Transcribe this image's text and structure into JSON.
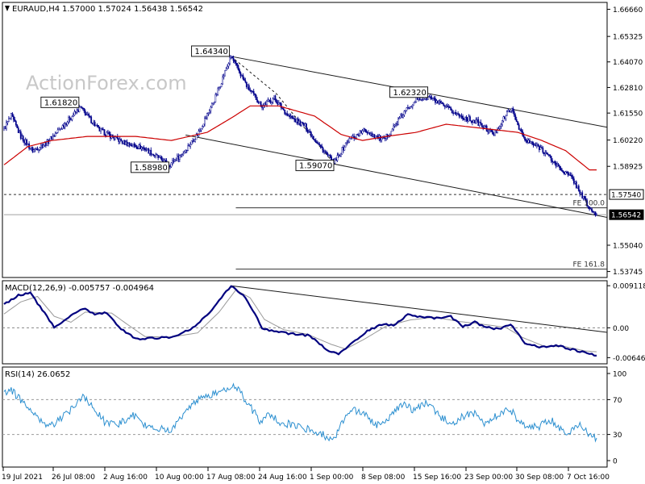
{
  "header": {
    "symbol": "EURAUD,H4",
    "ohlc": "1.57000 1.57024 1.56438 1.56542"
  },
  "watermark": "ActionForex.com",
  "colors": {
    "bull": "#00008b",
    "bear": "#00008b",
    "ma": "#cc0000",
    "trend": "#1a1a1a",
    "macd": "#00007f",
    "signal": "#999999",
    "rsi": "#2b8fd0",
    "label_border": "#1a1a1a"
  },
  "chart_data": [
    {
      "type": "candlestick",
      "series_overlay": "moving-average",
      "title": "",
      "y_ticks": [
        "1.66660",
        "1.65325",
        "1.64070",
        "1.62810",
        "1.61550",
        "1.60220",
        "1.58925",
        "1.57540",
        "1.56542",
        "1.55040",
        "1.53745"
      ],
      "ylim": [
        1.5345,
        1.67
      ],
      "x_ticks": [
        "19 Jul 2021",
        "26 Jul 08:00",
        "2 Aug 16:00",
        "10 Aug 00:00",
        "17 Aug 08:00",
        "24 Aug 16:00",
        "1 Sep 00:00",
        "8 Sep 08:00",
        "15 Sep 16:00",
        "23 Sep 00:00",
        "30 Sep 08:00",
        "7 Oct 16:00"
      ],
      "price_anchors": [
        [
          0,
          1.608
        ],
        [
          6,
          1.614
        ],
        [
          14,
          1.604
        ],
        [
          24,
          1.597
        ],
        [
          36,
          1.601
        ],
        [
          52,
          1.611
        ],
        [
          64,
          1.6182
        ],
        [
          80,
          1.607
        ],
        [
          100,
          1.601
        ],
        [
          118,
          1.598
        ],
        [
          138,
          1.5898
        ],
        [
          150,
          1.596
        ],
        [
          162,
          1.605
        ],
        [
          176,
          1.622
        ],
        [
          190,
          1.6434
        ],
        [
          204,
          1.628
        ],
        [
          216,
          1.619
        ],
        [
          226,
          1.623
        ],
        [
          238,
          1.614
        ],
        [
          252,
          1.609
        ],
        [
          266,
          1.598
        ],
        [
          276,
          1.5907
        ],
        [
          288,
          1.602
        ],
        [
          302,
          1.607
        ],
        [
          318,
          1.602
        ],
        [
          334,
          1.615
        ],
        [
          344,
          1.622
        ],
        [
          356,
          1.6232
        ],
        [
          370,
          1.618
        ],
        [
          382,
          1.614
        ],
        [
          396,
          1.611
        ],
        [
          410,
          1.605
        ],
        [
          424,
          1.618
        ],
        [
          436,
          1.602
        ],
        [
          450,
          1.598
        ],
        [
          462,
          1.59
        ],
        [
          476,
          1.583
        ],
        [
          490,
          1.5683
        ],
        [
          496,
          1.56542
        ]
      ],
      "ma_anchors": [
        [
          0,
          1.59
        ],
        [
          20,
          1.599
        ],
        [
          40,
          1.602
        ],
        [
          70,
          1.604
        ],
        [
          110,
          1.604
        ],
        [
          140,
          1.602
        ],
        [
          170,
          1.606
        ],
        [
          190,
          1.613
        ],
        [
          206,
          1.619
        ],
        [
          230,
          1.619
        ],
        [
          260,
          1.614
        ],
        [
          282,
          1.605
        ],
        [
          300,
          1.602
        ],
        [
          320,
          1.604
        ],
        [
          345,
          1.606
        ],
        [
          370,
          1.61
        ],
        [
          400,
          1.608
        ],
        [
          430,
          1.606
        ],
        [
          450,
          1.602
        ],
        [
          470,
          1.597
        ],
        [
          490,
          1.5875
        ]
      ],
      "labels": [
        {
          "text": "1.64340",
          "bar": 190,
          "value": 1.6434,
          "pos": "left"
        },
        {
          "text": "1.61820",
          "bar": 64,
          "value": 1.6182,
          "pos": "left"
        },
        {
          "text": "1.58980",
          "bar": 138,
          "value": 1.5898,
          "pos": "left-below"
        },
        {
          "text": "1.59070",
          "bar": 276,
          "value": 1.5907,
          "pos": "left-below"
        },
        {
          "text": "1.62320",
          "bar": 356,
          "value": 1.6232,
          "pos": "left"
        }
      ],
      "channel_upper": {
        "from": [
          190,
          1.6434
        ],
        "to": [
          496,
          1.6095
        ]
      },
      "channel_lower": {
        "from": [
          152,
          1.6047
        ],
        "to": [
          496,
          1.5651
        ]
      },
      "dashed_swing": [
        [
          190,
          1.6434
        ],
        [
          228,
          1.625
        ],
        [
          276,
          1.5907
        ]
      ],
      "levels": [
        {
          "value": 1.5754,
          "style": "dashed",
          "label": "1.57540",
          "tag": "",
          "from_bar": 0
        },
        {
          "value": 1.5688,
          "style": "solid",
          "label": "",
          "tag": "FE 100.0",
          "from_bar": 194
        },
        {
          "value": 1.56542,
          "style": "solid",
          "label": "1.56542",
          "tag": "",
          "from_bar": 0,
          "current": true
        },
        {
          "value": 1.5386,
          "style": "solid",
          "label": "",
          "tag": "FE 161.8",
          "from_bar": 194
        }
      ]
    },
    {
      "type": "line",
      "title": "MACD(12,26,9) -0.005757 -0.004964",
      "y_ticks": [
        "0.009118",
        "0.00",
        "-0.006465"
      ],
      "ylim": [
        -0.0078,
        0.0102
      ],
      "macd_anchors": [
        [
          0,
          0.005
        ],
        [
          12,
          0.007
        ],
        [
          22,
          0.0075
        ],
        [
          34,
          0.0032
        ],
        [
          42,
          0.0001
        ],
        [
          54,
          0.0023
        ],
        [
          66,
          0.0042
        ],
        [
          76,
          0.003
        ],
        [
          86,
          0.0032
        ],
        [
          98,
          -0.0002
        ],
        [
          110,
          -0.0024
        ],
        [
          124,
          -0.0023
        ],
        [
          142,
          -0.002
        ],
        [
          160,
          0.0002
        ],
        [
          176,
          0.0045
        ],
        [
          190,
          0.0091
        ],
        [
          200,
          0.0072
        ],
        [
          208,
          0.004
        ],
        [
          216,
          -0.0002
        ],
        [
          226,
          -0.0008
        ],
        [
          240,
          -0.0013
        ],
        [
          256,
          -0.0017
        ],
        [
          270,
          -0.0048
        ],
        [
          280,
          -0.0056
        ],
        [
          292,
          -0.0032
        ],
        [
          304,
          -0.0007
        ],
        [
          316,
          0.0007
        ],
        [
          326,
          0.0006
        ],
        [
          338,
          0.0028
        ],
        [
          350,
          0.0023
        ],
        [
          362,
          0.0021
        ],
        [
          374,
          0.0024
        ],
        [
          384,
          0.0003
        ],
        [
          394,
          0.0012
        ],
        [
          404,
          0.0001
        ],
        [
          414,
          -0.0003
        ],
        [
          424,
          0.0007
        ],
        [
          436,
          -0.0033
        ],
        [
          450,
          -0.0042
        ],
        [
          462,
          -0.0038
        ],
        [
          474,
          -0.0046
        ],
        [
          486,
          -0.0054
        ],
        [
          496,
          -0.006
        ]
      ],
      "signal_anchors": [
        [
          0,
          0.003
        ],
        [
          14,
          0.0056
        ],
        [
          28,
          0.0068
        ],
        [
          42,
          0.0025
        ],
        [
          56,
          0.0012
        ],
        [
          68,
          0.0034
        ],
        [
          90,
          0.0032
        ],
        [
          104,
          0.0006
        ],
        [
          118,
          -0.0019
        ],
        [
          140,
          -0.002
        ],
        [
          162,
          -0.0011
        ],
        [
          180,
          0.0034
        ],
        [
          194,
          0.0082
        ],
        [
          206,
          0.0065
        ],
        [
          218,
          0.0018
        ],
        [
          234,
          -0.0004
        ],
        [
          254,
          -0.0014
        ],
        [
          274,
          -0.0036
        ],
        [
          286,
          -0.0046
        ],
        [
          302,
          -0.0024
        ],
        [
          320,
          0.0004
        ],
        [
          340,
          0.0017
        ],
        [
          360,
          0.0023
        ],
        [
          380,
          0.0014
        ],
        [
          400,
          0.0008
        ],
        [
          420,
          0.0001
        ],
        [
          434,
          -0.0021
        ],
        [
          452,
          -0.004
        ],
        [
          470,
          -0.0041
        ],
        [
          486,
          -0.005
        ],
        [
          496,
          -0.0052
        ]
      ],
      "trend": {
        "from": [
          190,
          0.0091
        ],
        "to": [
          496,
          -0.0007
        ]
      }
    },
    {
      "type": "line",
      "title": "RSI(14) 26.0652",
      "y_ticks": [
        "100",
        "70",
        "30",
        "0"
      ],
      "ylim": [
        0,
        100
      ],
      "levels": [
        70,
        30
      ],
      "rsi_anchors": [
        [
          0,
          78
        ],
        [
          6,
          82
        ],
        [
          12,
          72
        ],
        [
          22,
          58
        ],
        [
          32,
          44
        ],
        [
          40,
          40
        ],
        [
          48,
          48
        ],
        [
          58,
          62
        ],
        [
          66,
          76
        ],
        [
          74,
          60
        ],
        [
          84,
          45
        ],
        [
          96,
          42
        ],
        [
          108,
          52
        ],
        [
          118,
          40
        ],
        [
          130,
          36
        ],
        [
          140,
          35
        ],
        [
          146,
          48
        ],
        [
          154,
          58
        ],
        [
          164,
          72
        ],
        [
          174,
          76
        ],
        [
          184,
          80
        ],
        [
          192,
          86
        ],
        [
          198,
          77
        ],
        [
          206,
          62
        ],
        [
          214,
          46
        ],
        [
          222,
          52
        ],
        [
          232,
          44
        ],
        [
          244,
          40
        ],
        [
          256,
          36
        ],
        [
          266,
          30
        ],
        [
          276,
          25
        ],
        [
          284,
          46
        ],
        [
          292,
          58
        ],
        [
          302,
          52
        ],
        [
          312,
          40
        ],
        [
          322,
          50
        ],
        [
          334,
          64
        ],
        [
          344,
          58
        ],
        [
          354,
          66
        ],
        [
          364,
          52
        ],
        [
          374,
          42
        ],
        [
          384,
          50
        ],
        [
          394,
          55
        ],
        [
          404,
          40
        ],
        [
          414,
          54
        ],
        [
          424,
          58
        ],
        [
          434,
          40
        ],
        [
          446,
          38
        ],
        [
          458,
          46
        ],
        [
          470,
          32
        ],
        [
          482,
          40
        ],
        [
          490,
          30
        ],
        [
          496,
          26
        ]
      ]
    }
  ]
}
